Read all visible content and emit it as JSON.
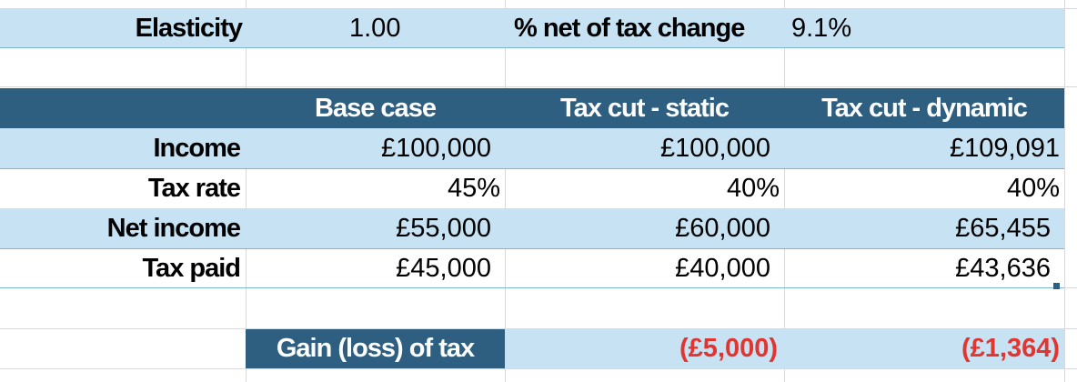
{
  "top": {
    "elasticity_label": "Elasticity",
    "elasticity_value": "1.00",
    "net_change_label": "% net of tax change",
    "net_change_value": "9.1%"
  },
  "table": {
    "headers": [
      "Base case",
      "Tax cut - static",
      "Tax cut - dynamic"
    ],
    "rows": [
      {
        "label": "Income",
        "values": [
          "£100,000",
          "£100,000",
          "£109,091"
        ]
      },
      {
        "label": "Tax rate",
        "values": [
          "45%",
          "40%",
          "40%"
        ]
      },
      {
        "label": "Net income",
        "values": [
          "£55,000",
          "£60,000",
          "£65,455"
        ]
      },
      {
        "label": "Tax paid",
        "values": [
          "£45,000",
          "£40,000",
          "£43,636"
        ]
      }
    ]
  },
  "gain": {
    "label": "Gain (loss) of tax",
    "static": "(£5,000)",
    "dynamic": "(£1,364)"
  },
  "colors": {
    "header_fill": "#2e5f80",
    "band_fill": "#c6e2f3",
    "loss_text": "#e3342f"
  }
}
